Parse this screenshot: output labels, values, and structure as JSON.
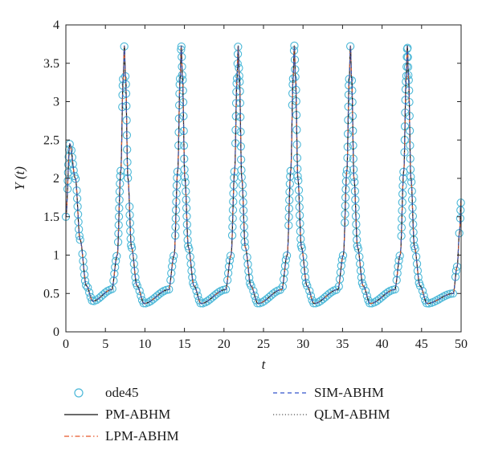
{
  "chart_data": {
    "type": "line",
    "xlabel": "t",
    "ylabel": "Y (t)",
    "xlim": [
      0,
      50
    ],
    "ylim": [
      0,
      4
    ],
    "xticks": [
      "0",
      "5",
      "10",
      "15",
      "20",
      "25",
      "30",
      "35",
      "40",
      "45",
      "50"
    ],
    "yticks": [
      "0",
      "0.5",
      "1",
      "1.5",
      "2",
      "2.5",
      "3",
      "3.5",
      "4"
    ],
    "grid": false,
    "legend_position": "bottom",
    "oscillation": {
      "initial_value": 1.5,
      "first_peak": {
        "t": 0.5,
        "y": 2.45
      },
      "peak_times": [
        7.4,
        14.6,
        21.8,
        28.9,
        36.0,
        43.2
      ],
      "peak_value": 3.73,
      "minimum_value": 0.37,
      "end_value": 1.72
    },
    "series": [
      {
        "name": "ode45",
        "style": "circle-markers",
        "color": "#4bb8d8"
      },
      {
        "name": "PM-ABHM",
        "style": "solid",
        "color": "#111111"
      },
      {
        "name": "LPM-ABHM",
        "style": "dashdot",
        "color": "#e8582a"
      },
      {
        "name": "SIM-ABHM",
        "style": "dashed",
        "color": "#3355cc"
      },
      {
        "name": "QLM-ABHM",
        "style": "dotted",
        "color": "#555555"
      }
    ]
  }
}
